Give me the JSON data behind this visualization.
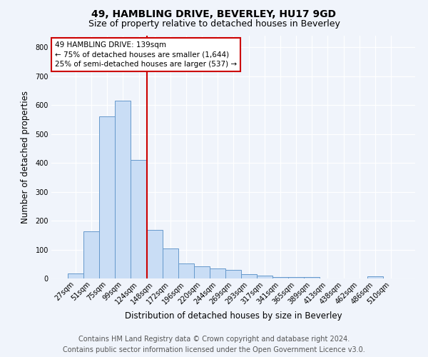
{
  "title": "49, HAMBLING DRIVE, BEVERLEY, HU17 9GD",
  "subtitle": "Size of property relative to detached houses in Beverley",
  "xlabel": "Distribution of detached houses by size in Beverley",
  "ylabel": "Number of detached properties",
  "bar_labels": [
    "27sqm",
    "51sqm",
    "75sqm",
    "99sqm",
    "124sqm",
    "148sqm",
    "172sqm",
    "196sqm",
    "220sqm",
    "244sqm",
    "269sqm",
    "293sqm",
    "317sqm",
    "341sqm",
    "365sqm",
    "389sqm",
    "413sqm",
    "438sqm",
    "462sqm",
    "486sqm",
    "510sqm"
  ],
  "bar_values": [
    18,
    163,
    560,
    615,
    410,
    168,
    103,
    52,
    43,
    35,
    30,
    15,
    10,
    6,
    5,
    4,
    0,
    0,
    0,
    8,
    0
  ],
  "bar_color": "#c9ddf5",
  "bar_edge_color": "#6699cc",
  "vline_x_index": 5,
  "vline_color": "#cc0000",
  "ylim": [
    0,
    840
  ],
  "yticks": [
    0,
    100,
    200,
    300,
    400,
    500,
    600,
    700,
    800
  ],
  "annotation_text": "49 HAMBLING DRIVE: 139sqm\n← 75% of detached houses are smaller (1,644)\n25% of semi-detached houses are larger (537) →",
  "annotation_box_color": "#ffffff",
  "annotation_box_edge": "#cc0000",
  "footer_line1": "Contains HM Land Registry data © Crown copyright and database right 2024.",
  "footer_line2": "Contains public sector information licensed under the Open Government Licence v3.0.",
  "background_color": "#f0f4fb",
  "plot_bg_color": "#f0f4fb",
  "grid_color": "#ffffff",
  "title_fontsize": 10,
  "subtitle_fontsize": 9,
  "axis_label_fontsize": 8.5,
  "tick_fontsize": 7,
  "footer_fontsize": 7,
  "annotation_fontsize": 7.5
}
